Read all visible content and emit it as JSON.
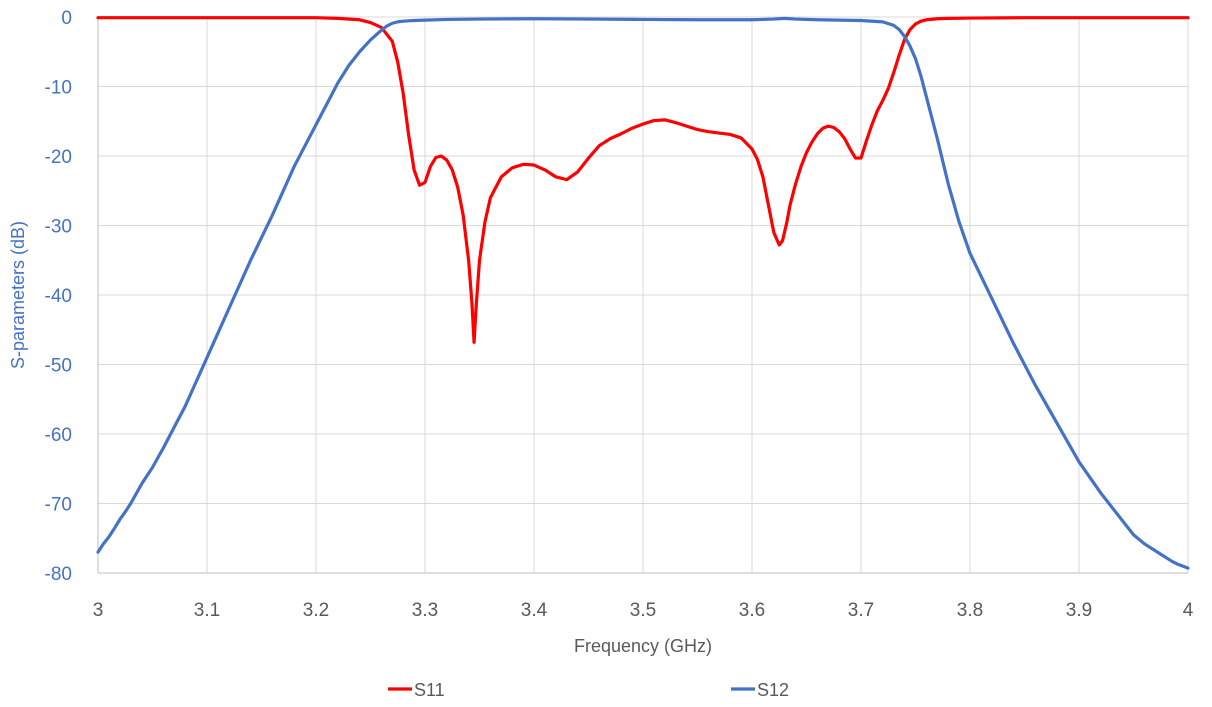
{
  "chart_data": {
    "type": "line",
    "title": "",
    "xlabel": "Frequency (GHz)",
    "ylabel": "S-parameters (dB)",
    "xlim": [
      3,
      4
    ],
    "ylim": [
      -80,
      0
    ],
    "x_ticks": [
      "3",
      "3.1",
      "3.2",
      "3.3",
      "3.4",
      "3.5",
      "3.6",
      "3.7",
      "3.8",
      "3.9",
      "4"
    ],
    "y_ticks": [
      "0",
      "-10",
      "-20",
      "-30",
      "-40",
      "-50",
      "-60",
      "-70",
      "-80"
    ],
    "grid": true,
    "legend_position": "bottom",
    "series": [
      {
        "name": "S11",
        "color": "#ff0000",
        "x": [
          3.0,
          3.1,
          3.2,
          3.22,
          3.24,
          3.25,
          3.26,
          3.27,
          3.275,
          3.28,
          3.285,
          3.29,
          3.295,
          3.3,
          3.305,
          3.31,
          3.315,
          3.32,
          3.325,
          3.33,
          3.335,
          3.34,
          3.343,
          3.345,
          3.347,
          3.35,
          3.355,
          3.36,
          3.37,
          3.38,
          3.39,
          3.4,
          3.41,
          3.42,
          3.43,
          3.44,
          3.45,
          3.46,
          3.47,
          3.48,
          3.49,
          3.5,
          3.51,
          3.52,
          3.53,
          3.54,
          3.55,
          3.56,
          3.57,
          3.58,
          3.59,
          3.6,
          3.605,
          3.61,
          3.615,
          3.62,
          3.625,
          3.628,
          3.632,
          3.635,
          3.64,
          3.645,
          3.65,
          3.655,
          3.66,
          3.665,
          3.67,
          3.675,
          3.68,
          3.685,
          3.69,
          3.695,
          3.7,
          3.705,
          3.71,
          3.715,
          3.72,
          3.725,
          3.73,
          3.735,
          3.74,
          3.745,
          3.75,
          3.755,
          3.76,
          3.77,
          3.78,
          3.8,
          3.85,
          3.9,
          3.95,
          4.0
        ],
        "values": [
          -0.1,
          -0.1,
          -0.1,
          -0.2,
          -0.4,
          -0.8,
          -1.5,
          -3.5,
          -6.5,
          -11.0,
          -17.0,
          -22.0,
          -24.2,
          -23.8,
          -21.5,
          -20.2,
          -20.0,
          -20.6,
          -22.0,
          -24.5,
          -28.5,
          -35.0,
          -41.0,
          -46.8,
          -41.5,
          -35.0,
          -29.5,
          -26.0,
          -23.0,
          -21.7,
          -21.2,
          -21.3,
          -22.0,
          -23.0,
          -23.4,
          -22.3,
          -20.3,
          -18.5,
          -17.5,
          -16.8,
          -16.0,
          -15.4,
          -14.9,
          -14.8,
          -15.2,
          -15.7,
          -16.2,
          -16.5,
          -16.7,
          -16.9,
          -17.4,
          -19.0,
          -20.5,
          -23.0,
          -27.0,
          -31.0,
          -32.8,
          -32.2,
          -29.5,
          -27.0,
          -24.0,
          -21.5,
          -19.5,
          -18.0,
          -16.8,
          -16.0,
          -15.7,
          -15.9,
          -16.5,
          -17.5,
          -19.0,
          -20.3,
          -20.3,
          -17.8,
          -15.5,
          -13.5,
          -12.0,
          -10.3,
          -8.0,
          -5.5,
          -3.2,
          -1.8,
          -1.0,
          -0.6,
          -0.4,
          -0.25,
          -0.2,
          -0.15,
          -0.1,
          -0.1,
          -0.1,
          -0.1
        ]
      },
      {
        "name": "S12",
        "color": "#4472c4",
        "x": [
          3.0,
          3.005,
          3.01,
          3.015,
          3.02,
          3.025,
          3.03,
          3.035,
          3.04,
          3.05,
          3.06,
          3.07,
          3.08,
          3.09,
          3.1,
          3.12,
          3.14,
          3.16,
          3.18,
          3.2,
          3.22,
          3.23,
          3.24,
          3.25,
          3.26,
          3.265,
          3.27,
          3.275,
          3.28,
          3.285,
          3.29,
          3.3,
          3.32,
          3.35,
          3.4,
          3.45,
          3.5,
          3.55,
          3.6,
          3.62,
          3.63,
          3.64,
          3.66,
          3.7,
          3.72,
          3.73,
          3.735,
          3.74,
          3.745,
          3.75,
          3.755,
          3.76,
          3.77,
          3.78,
          3.79,
          3.8,
          3.82,
          3.84,
          3.86,
          3.88,
          3.9,
          3.92,
          3.94,
          3.95,
          3.96,
          3.97,
          3.975,
          3.98,
          3.985,
          3.99,
          3.995,
          4.0
        ],
        "values": [
          -77.0,
          -75.8,
          -74.8,
          -73.6,
          -72.3,
          -71.2,
          -70.0,
          -68.6,
          -67.2,
          -64.8,
          -62.0,
          -59.0,
          -56.0,
          -52.5,
          -49.0,
          -42.0,
          -35.0,
          -28.5,
          -21.5,
          -15.5,
          -9.5,
          -7.0,
          -5.0,
          -3.3,
          -1.9,
          -1.3,
          -0.9,
          -0.7,
          -0.6,
          -0.55,
          -0.5,
          -0.45,
          -0.35,
          -0.3,
          -0.25,
          -0.3,
          -0.35,
          -0.4,
          -0.4,
          -0.3,
          -0.2,
          -0.3,
          -0.4,
          -0.5,
          -0.7,
          -1.2,
          -1.8,
          -2.8,
          -4.2,
          -6.0,
          -8.5,
          -11.5,
          -17.5,
          -24.0,
          -29.5,
          -34.0,
          -40.5,
          -47.0,
          -53.0,
          -58.5,
          -64.0,
          -68.5,
          -72.5,
          -74.5,
          -75.8,
          -76.8,
          -77.3,
          -77.8,
          -78.3,
          -78.7,
          -79.0,
          -79.3
        ]
      }
    ]
  }
}
